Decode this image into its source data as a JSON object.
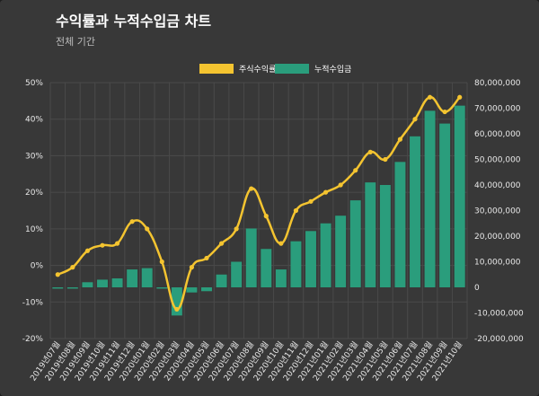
{
  "header": {
    "title": "수익률과 누적수입금 차트",
    "subtitle": "전체 기간"
  },
  "colors": {
    "line": "#f4c430",
    "bar": "#2a9d7c",
    "grid": "#4a4a4a",
    "card": "#383838"
  },
  "chart_data": {
    "type": "bar",
    "title": "수익률과 누적수입금 차트",
    "subtitle": "전체 기간",
    "legend_position": "top",
    "grid": true,
    "categories": [
      "2019년07월",
      "2019년08월",
      "2019년09월",
      "2019년10월",
      "2019년11월",
      "2019년12월",
      "2020년01월",
      "2020년02월",
      "2020년03월",
      "2020년04월",
      "2020년05월",
      "2020년06월",
      "2020년07월",
      "2020년08월",
      "2020년09월",
      "2020년10월",
      "2020년11월",
      "2020년12월",
      "2021년01월",
      "2021년02월",
      "2021년03월",
      "2021년04월",
      "2021년05월",
      "2021년06월",
      "2021년07월",
      "2021년08월",
      "2021년09월",
      "2021년10월"
    ],
    "y_left": {
      "ylim": [
        -20,
        50
      ],
      "ticks": [
        "-20%",
        "-10%",
        "0%",
        "10%",
        "20%",
        "30%",
        "40%",
        "50%"
      ]
    },
    "y_right": {
      "ylim": [
        -20000000,
        80000000
      ],
      "ticks": [
        "-20,000,000",
        "-10,000,000",
        "0",
        "10,000,000",
        "20,000,000",
        "30,000,000",
        "40,000,000",
        "50,000,000",
        "60,000,000",
        "70,000,000",
        "80,000,000"
      ]
    },
    "series": [
      {
        "name": "주식수익률",
        "type": "line",
        "axis": "left",
        "values": [
          -2.5,
          -0.5,
          4,
          5.5,
          6,
          12,
          10,
          1,
          -12,
          -0.5,
          2,
          6,
          10,
          21,
          13.5,
          6,
          15,
          17.5,
          20,
          22,
          26,
          31,
          29,
          34.5,
          40,
          46,
          42,
          46
        ]
      },
      {
        "name": "누적수입금",
        "type": "bar",
        "axis": "right",
        "values": [
          -500000,
          -500000,
          2000000,
          3000000,
          3500000,
          7000000,
          7500000,
          -500000,
          -11000000,
          -2000000,
          -1500000,
          5000000,
          10000000,
          23000000,
          15000000,
          7000000,
          18000000,
          22000000,
          25000000,
          28000000,
          34000000,
          41000000,
          40000000,
          49000000,
          59000000,
          69000000,
          64000000,
          71000000
        ]
      }
    ]
  }
}
